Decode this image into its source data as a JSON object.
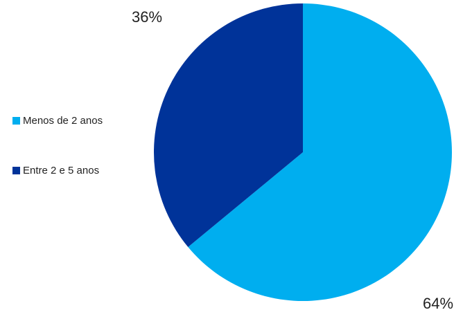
{
  "chart_data": {
    "type": "pie",
    "categories": [
      "Menos de 2 anos",
      "Entre 2 e 5 anos"
    ],
    "values": [
      64,
      36
    ],
    "data_labels": [
      "64%",
      "36%"
    ],
    "colors": [
      "#00aeef",
      "#003399"
    ],
    "start_angle": "12 o'clock, clockwise",
    "legend": "left"
  }
}
